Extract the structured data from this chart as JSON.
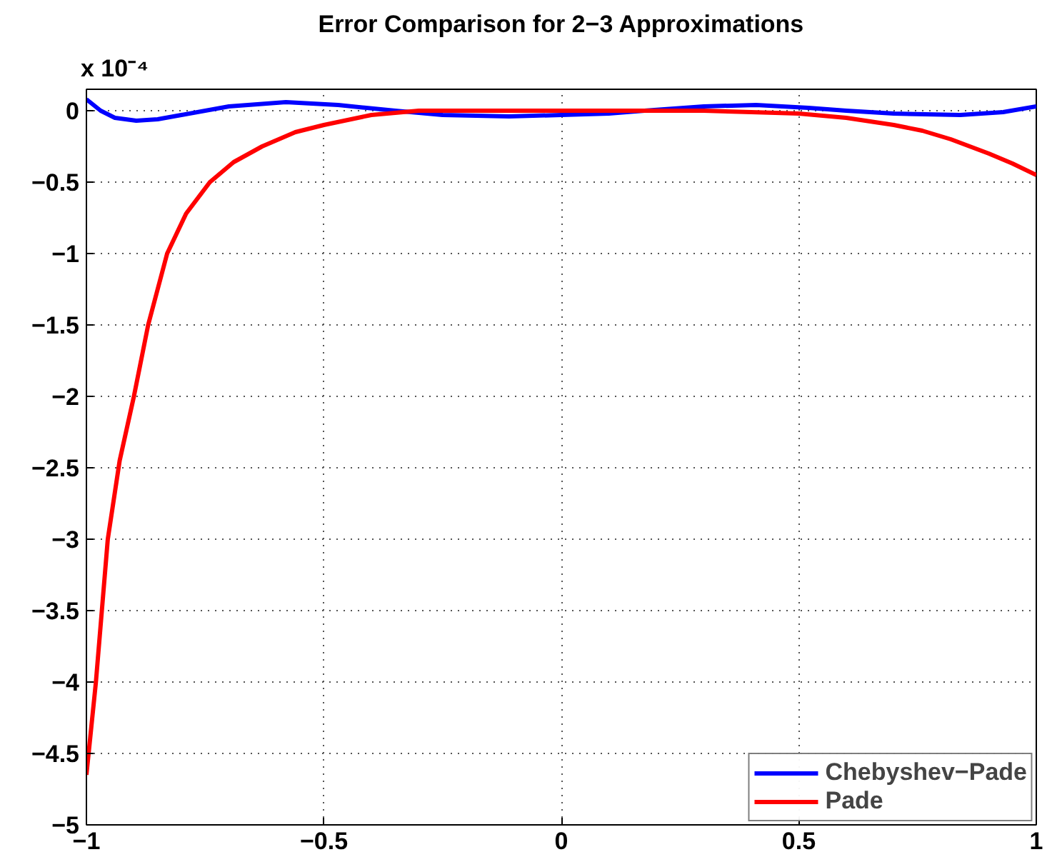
{
  "chart_data": {
    "type": "line",
    "title": "Error Comparison for 2−3 Approximations",
    "annotations": [
      "x 10⁻⁴"
    ],
    "xlim": [
      -1,
      1
    ],
    "ylim": [
      -5,
      0.15
    ],
    "xticks": [
      {
        "value": -1,
        "label": "−1"
      },
      {
        "value": -0.5,
        "label": "−0.5"
      },
      0,
      0.5,
      1
    ],
    "yticks": [
      0,
      {
        "value": -0.5,
        "label": "−0.5"
      },
      {
        "value": -1,
        "label": "−1"
      },
      {
        "value": -1.5,
        "label": "−1.5"
      },
      {
        "value": -2,
        "label": "−2"
      },
      {
        "value": -2.5,
        "label": "−2.5"
      },
      {
        "value": -3,
        "label": "−3"
      },
      {
        "value": -3.5,
        "label": "−3.5"
      },
      {
        "value": -4,
        "label": "−4"
      },
      {
        "value": -4.5,
        "label": "−4.5"
      },
      {
        "value": -5,
        "label": "−5"
      }
    ],
    "grid": true,
    "legend": "bottom right",
    "line_style": "solid",
    "marker": "none",
    "series": [
      {
        "name": "Chebyshev−Pade",
        "color": "#0000ff",
        "x": [
          -1,
          -0.97,
          -0.94,
          -0.895,
          -0.85,
          -0.8,
          -0.7,
          -0.58,
          -0.47,
          -0.35,
          -0.25,
          -0.11,
          0.0,
          0.1,
          0.175,
          0.3,
          0.41,
          0.52,
          0.6,
          0.7,
          0.84,
          0.93,
          1
        ],
        "values": [
          0.08,
          0.0,
          -0.05,
          -0.07,
          -0.06,
          -0.03,
          0.03,
          0.06,
          0.04,
          0.0,
          -0.03,
          -0.04,
          -0.03,
          -0.02,
          0.0,
          0.03,
          0.04,
          0.02,
          0.0,
          -0.02,
          -0.03,
          -0.01,
          0.03
        ]
      },
      {
        "name": "Pade",
        "color": "#ff0000",
        "x": [
          -1,
          -0.98,
          -0.955,
          -0.93,
          -0.9,
          -0.87,
          -0.83,
          -0.79,
          -0.74,
          -0.69,
          -0.63,
          -0.56,
          -0.5,
          -0.4,
          -0.3,
          -0.1,
          0.1,
          0.3,
          0.4,
          0.5,
          0.6,
          0.7,
          0.76,
          0.82,
          0.86,
          0.9,
          0.95,
          1
        ],
        "values": [
          -4.65,
          -4.0,
          -3.0,
          -2.45,
          -2.0,
          -1.5,
          -1.0,
          -0.72,
          -0.5,
          -0.36,
          -0.25,
          -0.15,
          -0.1,
          -0.03,
          0.0,
          0.0,
          0.0,
          0.0,
          -0.01,
          -0.02,
          -0.05,
          -0.1,
          -0.14,
          -0.2,
          -0.25,
          -0.3,
          -0.37,
          -0.45
        ]
      }
    ]
  }
}
